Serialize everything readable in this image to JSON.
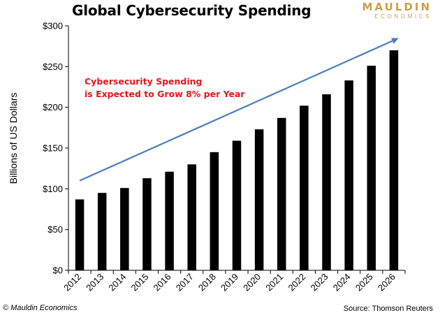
{
  "header": {
    "title": "Global Cybersecurity Spending",
    "logo_line1": "MAULDIN",
    "logo_line2": "ECONOMICS"
  },
  "footer": {
    "copyright": "© Mauldin Economics",
    "source": "Source: Thomson Reuters"
  },
  "colors": {
    "bars": "#000000",
    "trend_arrow": "#4a7ebb",
    "annotation": "#e8151b",
    "logo": "#c9a04a"
  },
  "chart_data": {
    "type": "bar",
    "title": "Global Cybersecurity Spending",
    "xlabel": "",
    "ylabel": "Billions of US Dollars",
    "categories": [
      "2012",
      "2013",
      "2014",
      "2015",
      "2016",
      "2017",
      "2018",
      "2019",
      "2020",
      "2021",
      "2022",
      "2023",
      "2024",
      "2025",
      "2026"
    ],
    "values": [
      87,
      95,
      101,
      113,
      121,
      130,
      145,
      159,
      173,
      187,
      202,
      216,
      233,
      251,
      270
    ],
    "ylim": [
      0,
      300
    ],
    "yticks": [
      0,
      50,
      100,
      150,
      200,
      250,
      300
    ],
    "ytick_labels": [
      "$0",
      "$50",
      "$100",
      "$150",
      "$200",
      "$250",
      "$300"
    ],
    "grid": false,
    "legend": "none",
    "annotations": [
      "Cybersecurity Spending",
      "is Expected to Grow 8% per Year"
    ],
    "trend_arrow": {
      "from": [
        "2012",
        110
      ],
      "to": [
        "2026",
        285
      ]
    }
  }
}
